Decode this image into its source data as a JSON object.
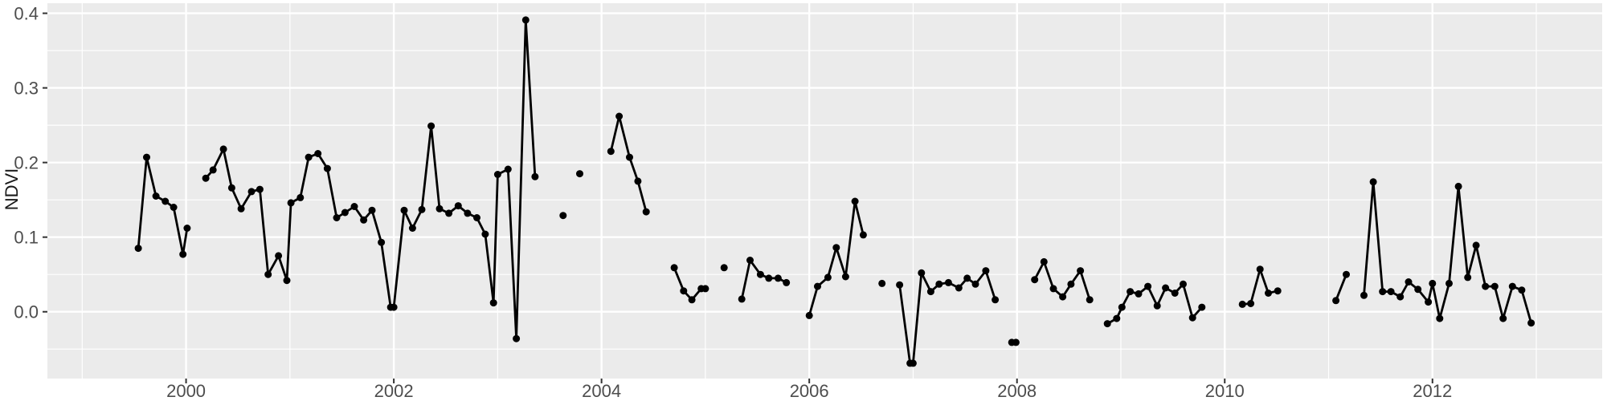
{
  "chart_data": {
    "type": "line",
    "title": "",
    "xlabel": "",
    "ylabel": "NDVI",
    "grid": "on",
    "legend": "none",
    "panel_bg": "#EBEBEB",
    "grid_color": "#FFFFFF",
    "line_color": "#000000",
    "point_color": "#000000",
    "tick_color": "#333333",
    "tick_label_color": "#4d4d4d",
    "xlim": [
      1998.665,
      2013.634
    ],
    "ylim": [
      -0.0895,
      0.4135
    ],
    "x_major_ticks": [
      2000,
      2002,
      2004,
      2006,
      2008,
      2010,
      2012
    ],
    "x_tick_labels": [
      "2000",
      "2002",
      "2004",
      "2006",
      "2008",
      "2010",
      "2012"
    ],
    "x_minor_ticks": [
      1999,
      2001,
      2003,
      2005,
      2007,
      2009,
      2011,
      2013
    ],
    "y_major_ticks": [
      0.0,
      0.1,
      0.2,
      0.3,
      0.4
    ],
    "y_tick_labels": [
      "0.0",
      "0.1",
      "0.2",
      "0.3",
      "0.4"
    ],
    "y_minor_ticks": [
      -0.05,
      0.05,
      0.15,
      0.25,
      0.35
    ],
    "series_name": "NDVI",
    "segments": [
      [
        [
          1999.54,
          0.085
        ],
        [
          1999.62,
          0.207
        ],
        [
          1999.71,
          0.155
        ],
        [
          1999.8,
          0.148
        ],
        [
          1999.88,
          0.14
        ],
        [
          1999.97,
          0.077
        ],
        [
          2000.01,
          0.112
        ]
      ],
      [
        [
          2000.19,
          0.179
        ],
        [
          2000.26,
          0.19
        ],
        [
          2000.36,
          0.218
        ],
        [
          2000.44,
          0.166
        ],
        [
          2000.53,
          0.138
        ],
        [
          2000.63,
          0.161
        ],
        [
          2000.71,
          0.164
        ],
        [
          2000.79,
          0.05
        ],
        [
          2000.89,
          0.075
        ],
        [
          2000.97,
          0.042
        ],
        [
          2001.01,
          0.146
        ],
        [
          2001.1,
          0.153
        ],
        [
          2001.18,
          0.207
        ],
        [
          2001.27,
          0.212
        ],
        [
          2001.36,
          0.192
        ],
        [
          2001.45,
          0.126
        ],
        [
          2001.53,
          0.133
        ],
        [
          2001.62,
          0.141
        ],
        [
          2001.71,
          0.123
        ],
        [
          2001.79,
          0.136
        ],
        [
          2001.88,
          0.093
        ],
        [
          2001.97,
          0.006
        ],
        [
          2002.0,
          0.006
        ],
        [
          2002.1,
          0.136
        ],
        [
          2002.18,
          0.112
        ],
        [
          2002.27,
          0.137
        ],
        [
          2002.36,
          0.249
        ],
        [
          2002.44,
          0.138
        ],
        [
          2002.53,
          0.132
        ],
        [
          2002.62,
          0.142
        ],
        [
          2002.71,
          0.132
        ],
        [
          2002.8,
          0.126
        ],
        [
          2002.88,
          0.104
        ],
        [
          2002.96,
          0.012
        ],
        [
          2003.0,
          0.184
        ],
        [
          2003.1,
          0.191
        ],
        [
          2003.18,
          -0.036
        ],
        [
          2003.27,
          0.391
        ],
        [
          2003.36,
          0.181
        ]
      ],
      [
        [
          2003.63,
          0.129
        ]
      ],
      [
        [
          2003.79,
          0.185
        ]
      ],
      [
        [
          2004.09,
          0.215
        ],
        [
          2004.17,
          0.262
        ],
        [
          2004.27,
          0.207
        ],
        [
          2004.35,
          0.175
        ],
        [
          2004.43,
          0.134
        ]
      ],
      [
        [
          2004.7,
          0.059
        ],
        [
          2004.79,
          0.028
        ],
        [
          2004.87,
          0.016
        ],
        [
          2004.96,
          0.031
        ],
        [
          2005.0,
          0.031
        ]
      ],
      [
        [
          2005.18,
          0.059
        ]
      ],
      [
        [
          2005.35,
          0.017
        ],
        [
          2005.43,
          0.069
        ],
        [
          2005.53,
          0.05
        ],
        [
          2005.61,
          0.045
        ],
        [
          2005.7,
          0.045
        ],
        [
          2005.78,
          0.039
        ]
      ],
      [
        [
          2006.0,
          -0.005
        ],
        [
          2006.08,
          0.034
        ],
        [
          2006.18,
          0.046
        ],
        [
          2006.26,
          0.086
        ],
        [
          2006.35,
          0.047
        ],
        [
          2006.44,
          0.148
        ],
        [
          2006.52,
          0.103
        ]
      ],
      [
        [
          2006.7,
          0.038
        ]
      ],
      [
        [
          2006.87,
          0.036
        ],
        [
          2006.97,
          -0.069
        ],
        [
          2007.0,
          -0.069
        ],
        [
          2007.08,
          0.052
        ],
        [
          2007.17,
          0.027
        ],
        [
          2007.25,
          0.037
        ],
        [
          2007.34,
          0.039
        ],
        [
          2007.44,
          0.032
        ],
        [
          2007.52,
          0.045
        ],
        [
          2007.6,
          0.037
        ],
        [
          2007.7,
          0.055
        ],
        [
          2007.79,
          0.016
        ]
      ],
      [
        [
          2007.95,
          -0.041
        ],
        [
          2007.99,
          -0.041
        ]
      ],
      [
        [
          2008.17,
          0.043
        ],
        [
          2008.26,
          0.067
        ],
        [
          2008.35,
          0.031
        ],
        [
          2008.44,
          0.02
        ],
        [
          2008.52,
          0.037
        ],
        [
          2008.61,
          0.055
        ],
        [
          2008.7,
          0.016
        ]
      ],
      [
        [
          2008.87,
          -0.016
        ],
        [
          2008.96,
          -0.009
        ],
        [
          2009.01,
          0.006
        ],
        [
          2009.09,
          0.027
        ],
        [
          2009.17,
          0.024
        ],
        [
          2009.26,
          0.034
        ],
        [
          2009.35,
          0.008
        ],
        [
          2009.43,
          0.032
        ],
        [
          2009.52,
          0.025
        ],
        [
          2009.6,
          0.037
        ],
        [
          2009.69,
          -0.008
        ],
        [
          2009.78,
          0.006
        ]
      ],
      [
        [
          2010.17,
          0.01
        ],
        [
          2010.25,
          0.011
        ],
        [
          2010.34,
          0.057
        ],
        [
          2010.42,
          0.025
        ],
        [
          2010.51,
          0.028
        ]
      ],
      [
        [
          2011.07,
          0.015
        ],
        [
          2011.17,
          0.05
        ]
      ],
      [
        [
          2011.34,
          0.022
        ],
        [
          2011.43,
          0.174
        ],
        [
          2011.52,
          0.027
        ],
        [
          2011.6,
          0.027
        ],
        [
          2011.69,
          0.02
        ],
        [
          2011.77,
          0.04
        ],
        [
          2011.86,
          0.03
        ],
        [
          2011.96,
          0.013
        ],
        [
          2012.0,
          0.038
        ],
        [
          2012.07,
          -0.009
        ],
        [
          2012.16,
          0.038
        ],
        [
          2012.25,
          0.168
        ],
        [
          2012.34,
          0.046
        ],
        [
          2012.42,
          0.089
        ],
        [
          2012.51,
          0.034
        ],
        [
          2012.6,
          0.034
        ],
        [
          2012.68,
          -0.009
        ],
        [
          2012.77,
          0.034
        ],
        [
          2012.86,
          0.029
        ],
        [
          2012.95,
          -0.015
        ]
      ]
    ]
  }
}
